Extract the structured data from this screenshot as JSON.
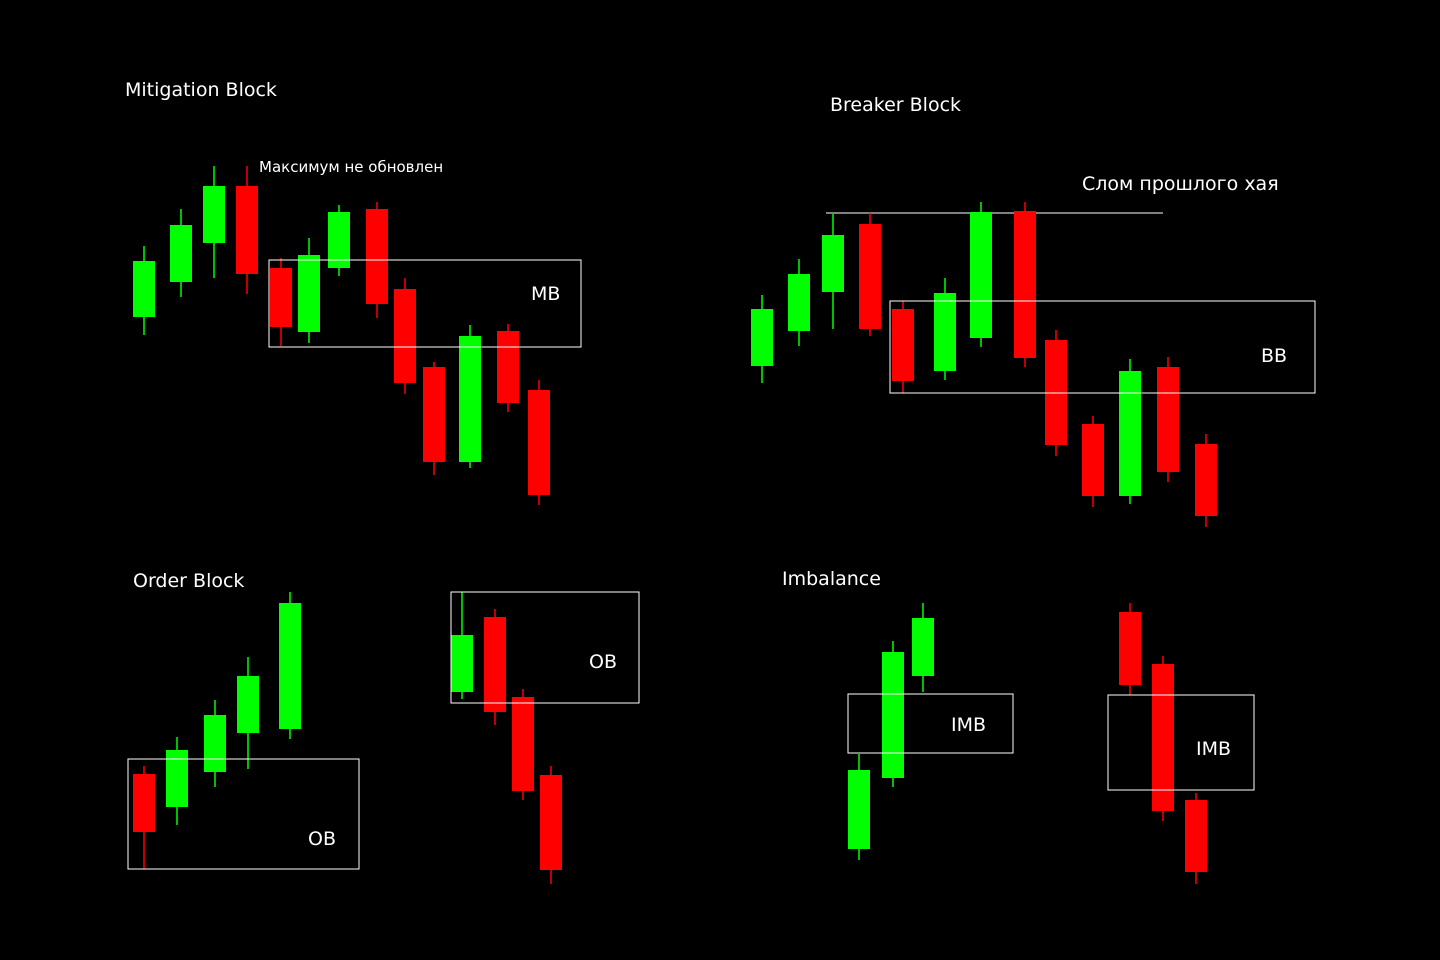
{
  "colors": {
    "background": "#000000",
    "bullish": "#00ff00",
    "bearish": "#ff0000",
    "line": "#ffffff",
    "text": "#ffffff"
  },
  "panels": [
    {
      "id": "mitigation",
      "title": "Mitigation Block",
      "note": "Максимум не обновлен",
      "zones": [
        {
          "label": "MB"
        }
      ],
      "candles": [
        {
          "dir": "bull"
        },
        {
          "dir": "bull"
        },
        {
          "dir": "bull"
        },
        {
          "dir": "bear"
        },
        {
          "dir": "bear"
        },
        {
          "dir": "bull"
        },
        {
          "dir": "bull"
        },
        {
          "dir": "bear"
        },
        {
          "dir": "bear"
        },
        {
          "dir": "bear"
        },
        {
          "dir": "bull"
        },
        {
          "dir": "bear"
        },
        {
          "dir": "bear"
        }
      ]
    },
    {
      "id": "breaker",
      "title": "Breaker Block",
      "note": "Слом прошлого хая",
      "zones": [
        {
          "label": "BB"
        }
      ],
      "candles": [
        {
          "dir": "bull"
        },
        {
          "dir": "bull"
        },
        {
          "dir": "bull"
        },
        {
          "dir": "bear"
        },
        {
          "dir": "bear"
        },
        {
          "dir": "bull"
        },
        {
          "dir": "bull"
        },
        {
          "dir": "bear"
        },
        {
          "dir": "bear"
        },
        {
          "dir": "bear"
        },
        {
          "dir": "bull"
        },
        {
          "dir": "bear"
        },
        {
          "dir": "bear"
        }
      ]
    },
    {
      "id": "order",
      "title": "Order Block",
      "zones": [
        {
          "label": "OB"
        },
        {
          "label": "OB"
        }
      ],
      "candles": [
        {
          "dir": "bear"
        },
        {
          "dir": "bull"
        },
        {
          "dir": "bull"
        },
        {
          "dir": "bull"
        },
        {
          "dir": "bull"
        },
        {
          "dir": "bull"
        },
        {
          "dir": "bear"
        },
        {
          "dir": "bear"
        },
        {
          "dir": "bear"
        }
      ]
    },
    {
      "id": "imbalance",
      "title": "Imbalance",
      "zones": [
        {
          "label": "IMB"
        },
        {
          "label": "IMB"
        }
      ],
      "candles": [
        {
          "dir": "bull"
        },
        {
          "dir": "bull"
        },
        {
          "dir": "bull"
        },
        {
          "dir": "bear"
        },
        {
          "dir": "bear"
        },
        {
          "dir": "bear"
        }
      ]
    }
  ]
}
